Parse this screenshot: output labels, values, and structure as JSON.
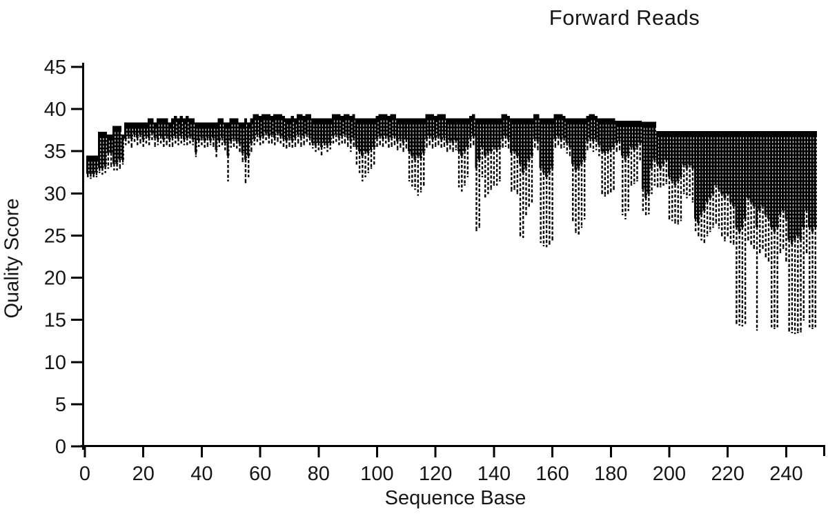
{
  "title": "Forward Reads",
  "colors": {
    "bar": "#000000",
    "background": "#ffffff",
    "text": "#151515",
    "axis": "#000000"
  },
  "chart_data": {
    "type": "bar",
    "subtype": "per-base-quality-boxes-with-whiskers",
    "title": "Forward Reads",
    "xlabel": "Sequence Base",
    "ylabel": "Quality Score",
    "xlim": [
      0,
      253
    ],
    "ylim": [
      0,
      45
    ],
    "x_ticks": [
      0,
      20,
      40,
      60,
      80,
      100,
      120,
      140,
      160,
      180,
      200,
      220,
      240
    ],
    "y_ticks": [
      0,
      5,
      10,
      15,
      20,
      25,
      30,
      35,
      40,
      45
    ],
    "grid": false,
    "legend": "none",
    "x_start": 1,
    "x_step": 1,
    "n_bases": 250,
    "box_top": [
      34.5,
      34.5,
      34.5,
      34.5,
      37.3,
      37.3,
      37.3,
      37.0,
      37.0,
      38.0,
      38.0,
      38.0,
      37.0,
      38.4,
      38.4,
      38.4,
      38.4,
      38.4,
      38.4,
      38.4,
      38.4,
      38.9,
      38.9,
      38.4,
      38.9,
      38.9,
      38.9,
      38.9,
      38.4,
      38.9,
      39.2,
      38.9,
      39.2,
      38.9,
      39.2,
      38.9,
      38.9,
      38.4,
      38.4,
      38.4,
      38.4,
      38.4,
      38.4,
      38.4,
      38.4,
      38.9,
      38.9,
      38.4,
      38.4,
      38.9,
      38.9,
      38.9,
      38.4,
      38.4,
      38.9,
      38.4,
      38.9,
      39.4,
      39.4,
      39.2,
      39.4,
      39.4,
      39.4,
      39.2,
      39.4,
      39.4,
      39.4,
      39.2,
      38.9,
      38.9,
      39.2,
      38.9,
      39.4,
      39.4,
      39.2,
      39.4,
      39.4,
      38.9,
      38.9,
      38.9,
      38.9,
      38.9,
      38.9,
      38.9,
      39.4,
      39.4,
      39.4,
      39.2,
      39.4,
      39.4,
      39.2,
      39.4,
      38.9,
      38.9,
      38.9,
      38.9,
      38.9,
      38.9,
      38.9,
      39.2,
      39.4,
      39.4,
      39.4,
      39.2,
      39.4,
      39.4,
      38.9,
      38.9,
      38.9,
      38.9,
      38.9,
      38.9,
      38.9,
      38.9,
      38.9,
      38.9,
      39.4,
      39.4,
      39.4,
      39.2,
      39.4,
      39.4,
      39.4,
      38.9,
      38.9,
      38.9,
      38.9,
      38.9,
      38.9,
      38.9,
      38.9,
      39.2,
      39.4,
      38.9,
      38.9,
      38.9,
      38.9,
      38.9,
      38.9,
      38.9,
      38.9,
      38.9,
      39.4,
      39.4,
      39.2,
      38.9,
      38.9,
      38.9,
      38.9,
      38.9,
      38.9,
      38.9,
      38.9,
      39.4,
      39.4,
      38.9,
      38.9,
      38.9,
      38.9,
      38.9,
      39.4,
      39.4,
      39.4,
      39.2,
      38.9,
      38.9,
      38.9,
      38.9,
      38.9,
      38.9,
      38.9,
      39.2,
      39.4,
      39.4,
      39.2,
      38.9,
      38.9,
      38.9,
      38.9,
      38.9,
      38.9,
      38.6,
      38.6,
      38.6,
      38.6,
      38.6,
      38.6,
      38.6,
      38.6,
      38.6,
      38.5,
      38.5,
      38.5,
      38.5,
      38.5,
      37.4,
      37.4,
      37.4,
      37.4,
      37.4,
      37.4,
      37.4,
      37.4,
      37.4,
      37.4,
      37.4,
      37.4,
      37.4,
      37.4,
      37.4,
      37.4,
      37.4,
      37.4,
      37.4,
      37.4,
      37.4,
      37.4,
      37.4,
      37.4,
      37.4,
      37.4,
      37.4,
      37.4,
      37.4,
      37.4,
      37.4,
      37.4,
      37.4,
      37.4,
      37.4,
      37.4,
      37.4,
      37.4,
      37.4,
      37.4,
      37.4,
      37.4,
      37.4,
      37.4,
      37.4,
      37.4,
      37.4,
      37.4,
      37.4,
      37.4,
      37.4,
      37.4,
      37.4,
      37.4,
      37.4
    ],
    "box_bottom": [
      32.3,
      32.3,
      32.3,
      32.5,
      33.0,
      33.0,
      33.2,
      34.8,
      34.8,
      33.5,
      33.5,
      34.0,
      34.0,
      36.5,
      36.8,
      36.5,
      37.0,
      36.6,
      37.0,
      36.4,
      36.8,
      36.6,
      37.2,
      36.6,
      36.4,
      36.8,
      36.4,
      36.8,
      36.4,
      36.6,
      36.8,
      36.5,
      36.8,
      36.4,
      36.6,
      36.8,
      36.4,
      34.9,
      36.3,
      36.6,
      36.3,
      36.6,
      36.3,
      36.6,
      35.2,
      36.3,
      36.6,
      36.0,
      34.5,
      36.2,
      36.5,
      36.2,
      35.9,
      34.8,
      34.0,
      34.5,
      36.0,
      36.5,
      37.0,
      36.6,
      36.8,
      37.2,
      36.8,
      37.0,
      36.6,
      37.2,
      36.8,
      36.5,
      36.3,
      36.6,
      36.3,
      36.6,
      37.0,
      36.6,
      36.8,
      37.0,
      36.6,
      36.0,
      35.7,
      36.0,
      35.5,
      36.0,
      35.7,
      36.0,
      36.8,
      37.0,
      36.6,
      36.8,
      37.0,
      36.6,
      36.2,
      36.6,
      35.5,
      35.0,
      34.5,
      35.0,
      34.8,
      35.2,
      35.5,
      36.5,
      36.8,
      36.5,
      36.8,
      36.4,
      36.6,
      36.8,
      36.2,
      36.5,
      36.0,
      36.4,
      35.0,
      34.5,
      34.0,
      34.5,
      34.2,
      34.8,
      36.5,
      36.8,
      36.4,
      36.6,
      36.8,
      36.4,
      36.6,
      36.0,
      36.3,
      36.0,
      36.3,
      35.0,
      34.5,
      35.0,
      35.5,
      36.5,
      36.8,
      33.0,
      34.0,
      35.5,
      34.5,
      34.8,
      35.0,
      35.5,
      35.2,
      35.5,
      36.5,
      36.8,
      36.4,
      34.8,
      35.0,
      34.5,
      33.5,
      32.5,
      33.0,
      34.0,
      34.5,
      36.5,
      36.2,
      33.0,
      32.5,
      32.0,
      32.5,
      33.0,
      36.5,
      36.8,
      36.4,
      36.6,
      36.0,
      35.5,
      33.5,
      32.8,
      33.0,
      33.5,
      34.0,
      36.2,
      36.5,
      36.2,
      36.4,
      35.8,
      35.0,
      34.8,
      35.0,
      35.2,
      35.5,
      36.0,
      36.2,
      34.5,
      34.0,
      34.5,
      35.5,
      35.2,
      35.5,
      36.0,
      30.5,
      29.5,
      30.0,
      33.0,
      34.0,
      33.5,
      33.0,
      33.5,
      34.0,
      32.0,
      31.5,
      31.0,
      31.5,
      32.0,
      33.4,
      33.0,
      33.4,
      33.0,
      27.0,
      26.5,
      27.5,
      28.0,
      29.0,
      29.5,
      30.0,
      31.0,
      30.5,
      30.0,
      29.5,
      30.0,
      29.0,
      28.5,
      26.0,
      25.5,
      26.0,
      27.0,
      29.5,
      29.0,
      28.5,
      26.0,
      28.0,
      28.5,
      27.5,
      27.0,
      26.0,
      25.5,
      26.0,
      27.5,
      28.0,
      27.0,
      24.5,
      24.0,
      24.5,
      25.0,
      24.5,
      26.0,
      28.0,
      26.0,
      25.5,
      26.0
    ],
    "whisker_low": [
      32.0,
      31.8,
      32.0,
      32.0,
      32.5,
      32.3,
      32.5,
      33.0,
      33.2,
      32.8,
      32.8,
      33.0,
      33.5,
      35.8,
      36.0,
      35.5,
      36.2,
      35.8,
      36.0,
      35.6,
      36.0,
      35.8,
      36.4,
      35.6,
      35.8,
      36.0,
      35.6,
      35.8,
      35.6,
      35.6,
      36.0,
      35.8,
      36.0,
      35.8,
      35.8,
      36.0,
      35.8,
      34.4,
      35.6,
      35.8,
      35.5,
      35.6,
      35.8,
      35.6,
      34.4,
      35.6,
      35.8,
      35.2,
      31.5,
      35.5,
      35.6,
      35.4,
      35.0,
      33.8,
      31.3,
      32.0,
      35.0,
      35.8,
      36.2,
      35.8,
      36.0,
      36.4,
      36.0,
      36.0,
      35.8,
      36.2,
      36.0,
      35.6,
      35.4,
      35.6,
      35.5,
      35.6,
      36.0,
      35.6,
      35.8,
      36.2,
      35.8,
      35.4,
      35.0,
      35.2,
      34.6,
      35.4,
      35.0,
      35.3,
      36.0,
      36.2,
      35.8,
      36.0,
      36.0,
      35.6,
      35.0,
      35.6,
      33.5,
      32.5,
      31.5,
      32.0,
      32.5,
      33.0,
      33.5,
      35.6,
      35.8,
      35.6,
      36.0,
      35.5,
      35.6,
      35.8,
      35.2,
      35.5,
      35.0,
      35.4,
      31.5,
      30.9,
      30.5,
      29.8,
      30.2,
      31.0,
      35.5,
      35.8,
      35.4,
      35.6,
      35.8,
      35.5,
      35.6,
      35.0,
      35.3,
      35.0,
      35.2,
      30.8,
      30.3,
      31.0,
      32.0,
      35.5,
      35.8,
      25.6,
      26.0,
      32.0,
      29.6,
      30.0,
      30.5,
      31.0,
      31.0,
      31.5,
      35.5,
      35.6,
      35.4,
      30.3,
      30.5,
      30.0,
      25.0,
      24.8,
      27.5,
      28.5,
      29.0,
      35.5,
      35.2,
      24.2,
      23.8,
      23.7,
      24.0,
      24.5,
      35.5,
      35.8,
      35.4,
      35.5,
      34.8,
      34.5,
      26.8,
      25.4,
      25.2,
      26.0,
      27.0,
      35.2,
      35.5,
      35.0,
      35.2,
      34.5,
      30.0,
      29.7,
      30.0,
      30.2,
      30.5,
      35.0,
      35.2,
      27.5,
      27.0,
      28.0,
      31.0,
      31.2,
      31.5,
      34.0,
      28.0,
      27.5,
      27.6,
      30.0,
      31.0,
      30.8,
      30.8,
      31.0,
      31.2,
      27.0,
      26.8,
      26.5,
      26.4,
      26.8,
      30.0,
      29.5,
      29.8,
      29.0,
      25.6,
      25.0,
      24.5,
      24.2,
      25.0,
      25.5,
      26.0,
      26.5,
      25.9,
      25.0,
      24.4,
      25.0,
      24.2,
      24.0,
      14.6,
      14.4,
      14.3,
      14.6,
      24.5,
      24.0,
      23.5,
      13.8,
      23.0,
      23.5,
      22.5,
      22.0,
      14.2,
      14.0,
      14.2,
      23.0,
      23.5,
      22.0,
      13.7,
      13.5,
      13.4,
      13.5,
      13.6,
      15.0,
      23.0,
      14.2,
      14.0,
      14.2
    ]
  }
}
